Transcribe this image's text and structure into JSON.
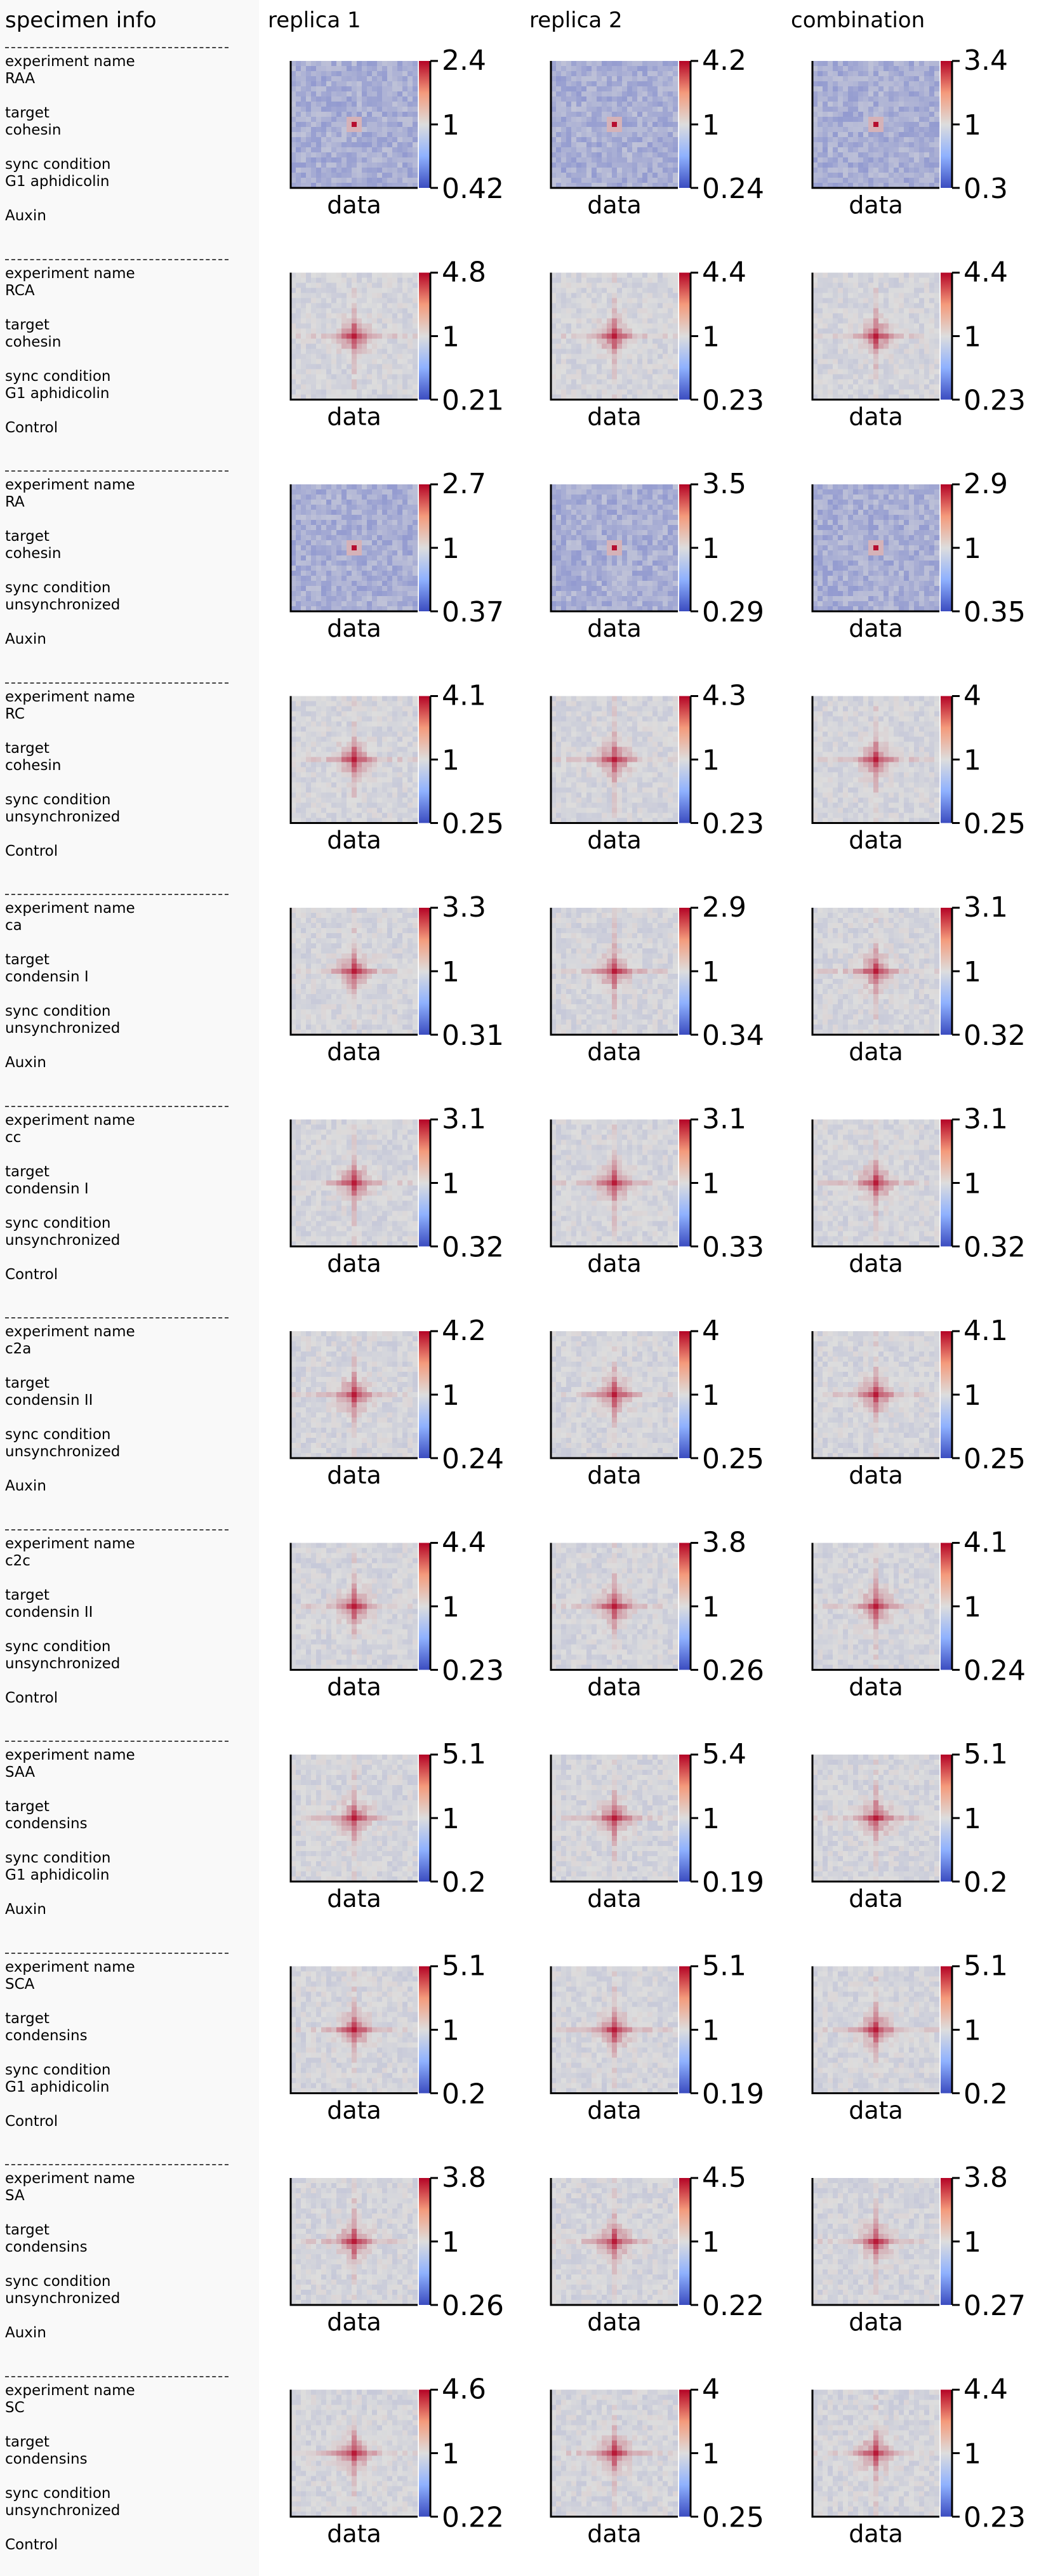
{
  "headers": {
    "specimen": "specimen info",
    "columns": [
      "replica 1",
      "replica 2",
      "combination"
    ]
  },
  "field_labels": {
    "experiment": "experiment name",
    "target": "target",
    "sync": "sync condition"
  },
  "colors": {
    "low": "#3b4cc0",
    "mid": "#dddddd",
    "high": "#b40426"
  },
  "chart_data": {
    "type": "heatmap",
    "xlabel": "data",
    "colorbar_mid_label": "1",
    "rows": [
      {
        "experiment": "RAA",
        "target": "cohesin",
        "sync": "G1 aphidicolin",
        "treatment": "Auxin",
        "pattern": "dot",
        "panels": [
          {
            "max": "2.4",
            "min": "0.42"
          },
          {
            "max": "4.2",
            "min": "0.24"
          },
          {
            "max": "3.4",
            "min": "0.3"
          }
        ]
      },
      {
        "experiment": "RCA",
        "target": "cohesin",
        "sync": "G1 aphidicolin",
        "treatment": "Control",
        "pattern": "cross",
        "panels": [
          {
            "max": "4.8",
            "min": "0.21"
          },
          {
            "max": "4.4",
            "min": "0.23"
          },
          {
            "max": "4.4",
            "min": "0.23"
          }
        ]
      },
      {
        "experiment": "RA",
        "target": "cohesin",
        "sync": "unsynchronized",
        "treatment": "Auxin",
        "pattern": "dot",
        "panels": [
          {
            "max": "2.7",
            "min": "0.37"
          },
          {
            "max": "3.5",
            "min": "0.29"
          },
          {
            "max": "2.9",
            "min": "0.35"
          }
        ]
      },
      {
        "experiment": "RC",
        "target": "cohesin",
        "sync": "unsynchronized",
        "treatment": "Control",
        "pattern": "cross",
        "panels": [
          {
            "max": "4.1",
            "min": "0.25"
          },
          {
            "max": "4.3",
            "min": "0.23"
          },
          {
            "max": "4",
            "min": "0.25"
          }
        ]
      },
      {
        "experiment": "ca",
        "target": "condensin I",
        "sync": "unsynchronized",
        "treatment": "Auxin",
        "pattern": "cross",
        "panels": [
          {
            "max": "3.3",
            "min": "0.31"
          },
          {
            "max": "2.9",
            "min": "0.34"
          },
          {
            "max": "3.1",
            "min": "0.32"
          }
        ]
      },
      {
        "experiment": "cc",
        "target": "condensin I",
        "sync": "unsynchronized",
        "treatment": "Control",
        "pattern": "cross",
        "panels": [
          {
            "max": "3.1",
            "min": "0.32"
          },
          {
            "max": "3.1",
            "min": "0.33"
          },
          {
            "max": "3.1",
            "min": "0.32"
          }
        ]
      },
      {
        "experiment": "c2a",
        "target": "condensin II",
        "sync": "unsynchronized",
        "treatment": "Auxin",
        "pattern": "cross",
        "panels": [
          {
            "max": "4.2",
            "min": "0.24"
          },
          {
            "max": "4",
            "min": "0.25"
          },
          {
            "max": "4.1",
            "min": "0.25"
          }
        ]
      },
      {
        "experiment": "c2c",
        "target": "condensin II",
        "sync": "unsynchronized",
        "treatment": "Control",
        "pattern": "cross",
        "panels": [
          {
            "max": "4.4",
            "min": "0.23"
          },
          {
            "max": "3.8",
            "min": "0.26"
          },
          {
            "max": "4.1",
            "min": "0.24"
          }
        ]
      },
      {
        "experiment": "SAA",
        "target": "condensins",
        "sync": "G1 aphidicolin",
        "treatment": "Auxin",
        "pattern": "cross",
        "panels": [
          {
            "max": "5.1",
            "min": "0.2"
          },
          {
            "max": "5.4",
            "min": "0.19"
          },
          {
            "max": "5.1",
            "min": "0.2"
          }
        ]
      },
      {
        "experiment": "SCA",
        "target": "condensins",
        "sync": "G1 aphidicolin",
        "treatment": "Control",
        "pattern": "cross",
        "panels": [
          {
            "max": "5.1",
            "min": "0.2"
          },
          {
            "max": "5.1",
            "min": "0.19"
          },
          {
            "max": "5.1",
            "min": "0.2"
          }
        ]
      },
      {
        "experiment": "SA",
        "target": "condensins",
        "sync": "unsynchronized",
        "treatment": "Auxin",
        "pattern": "cross",
        "panels": [
          {
            "max": "3.8",
            "min": "0.26"
          },
          {
            "max": "4.5",
            "min": "0.22"
          },
          {
            "max": "3.8",
            "min": "0.27"
          }
        ]
      },
      {
        "experiment": "SC",
        "target": "condensins",
        "sync": "unsynchronized",
        "treatment": "Control",
        "pattern": "cross",
        "panels": [
          {
            "max": "4.6",
            "min": "0.22"
          },
          {
            "max": "4",
            "min": "0.25"
          },
          {
            "max": "4.4",
            "min": "0.23"
          }
        ]
      }
    ]
  }
}
